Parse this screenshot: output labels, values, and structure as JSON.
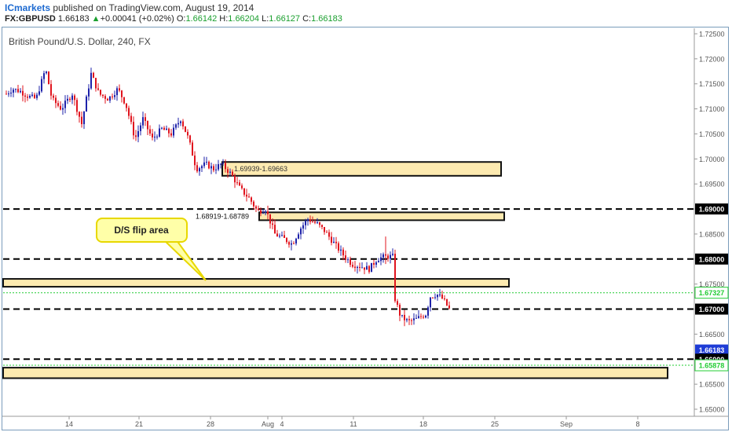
{
  "header": {
    "publisher": "ICmarkets",
    "published_text": " published on TradingView.com, August 19, 2014",
    "symbol": "FX:GBPUSD",
    "last": "1.66183",
    "arrow": "▲",
    "change": "+0.00041 (+0.02%)",
    "o_label": "O:",
    "o_val": "1.66142",
    "h_label": "H:",
    "h_val": "1.66204",
    "l_label": "L:",
    "l_val": "1.66127",
    "c_label": "C:",
    "c_val": "1.66183"
  },
  "chart_title": "British Pound/U.S. Dollar, 240, FX",
  "colors": {
    "up": "#1e22aa",
    "down": "#e0141e",
    "zone_fill": "#fdeab0",
    "zone_stroke": "#111111",
    "green_line": "#22cc33",
    "callout_fill": "#ffffa8",
    "callout_stroke": "#e8d800",
    "current_price": "#1e3cd6"
  },
  "chart_data": {
    "type": "candlestick",
    "title": "British Pound/U.S. Dollar, 240, FX",
    "ylim": [
      1.65,
      1.725
    ],
    "y_ticks": [
      "1.72500",
      "1.72000",
      "1.71500",
      "1.71000",
      "1.70500",
      "1.70000",
      "1.69500",
      "1.69000",
      "1.68500",
      "1.68000",
      "1.67500",
      "1.67000",
      "1.66500",
      "1.66000",
      "1.65500",
      "1.65000"
    ],
    "x_ticks": [
      "14",
      "21",
      "28",
      "Aug",
      "4",
      "11",
      "18",
      "25",
      "Sep",
      "8"
    ],
    "anchors": [
      [
        0,
        1.713
      ],
      [
        8,
        1.714
      ],
      [
        18,
        1.7135
      ],
      [
        28,
        1.7125
      ],
      [
        38,
        1.712
      ],
      [
        50,
        1.718
      ],
      [
        58,
        1.712
      ],
      [
        70,
        1.71
      ],
      [
        84,
        1.713
      ],
      [
        96,
        1.707
      ],
      [
        108,
        1.717
      ],
      [
        118,
        1.713
      ],
      [
        130,
        1.712
      ],
      [
        142,
        1.714
      ],
      [
        152,
        1.711
      ],
      [
        164,
        1.704
      ],
      [
        174,
        1.708
      ],
      [
        186,
        1.704
      ],
      [
        198,
        1.706
      ],
      [
        210,
        1.705
      ],
      [
        222,
        1.708
      ],
      [
        232,
        1.704
      ],
      [
        242,
        1.698
      ],
      [
        254,
        1.699
      ],
      [
        264,
        1.698
      ],
      [
        274,
        1.699
      ],
      [
        286,
        1.697
      ],
      [
        298,
        1.694
      ],
      [
        310,
        1.692
      ],
      [
        320,
        1.6895
      ],
      [
        330,
        1.69
      ],
      [
        342,
        1.685
      ],
      [
        354,
        1.684
      ],
      [
        364,
        1.683
      ],
      [
        374,
        1.686
      ],
      [
        384,
        1.688
      ],
      [
        396,
        1.687
      ],
      [
        406,
        1.6855
      ],
      [
        418,
        1.683
      ],
      [
        428,
        1.681
      ],
      [
        440,
        1.679
      ],
      [
        452,
        1.6785
      ],
      [
        462,
        1.678
      ],
      [
        472,
        1.68
      ],
      [
        482,
        1.6805
      ],
      [
        492,
        1.6805
      ],
      [
        494,
        1.6725
      ],
      [
        502,
        1.6685
      ],
      [
        512,
        1.6675
      ],
      [
        522,
        1.668
      ],
      [
        534,
        1.669
      ],
      [
        540,
        1.6725
      ],
      [
        548,
        1.673
      ],
      [
        556,
        1.672
      ],
      [
        564,
        1.67
      ],
      [
        566,
        1.664
      ],
      [
        572,
        1.6618
      ]
    ],
    "zones": [
      {
        "label": "1.69939-1.69663",
        "top": 1.69939,
        "bottom": 1.69663,
        "x_end_day": "Aug 25"
      },
      {
        "label": "1.68919-1.68789",
        "top": 1.68919,
        "bottom": 1.68789,
        "x_end_day": "Aug 25"
      },
      {
        "label": "",
        "top": 1.676,
        "bottom": 1.6745,
        "x_end_day": "Aug 25"
      },
      {
        "label": "",
        "top": 1.6583,
        "bottom": 1.6562,
        "x_end_day": "Sep 8"
      }
    ],
    "dashed_levels": [
      1.69,
      1.68,
      1.67,
      1.66
    ],
    "green_levels": [
      1.67327,
      1.65878
    ],
    "price_labels": [
      {
        "value": "1.69000",
        "style": "black"
      },
      {
        "value": "1.68000",
        "style": "black"
      },
      {
        "value": "1.67327",
        "style": "green"
      },
      {
        "value": "1.67000",
        "style": "black"
      },
      {
        "value": "1.66183",
        "style": "blue"
      },
      {
        "value": "1.66000",
        "style": "black"
      },
      {
        "value": "1.65878",
        "style": "green"
      }
    ],
    "current_price": 1.66183,
    "annotations": [
      {
        "text": "D/S flip area"
      }
    ]
  }
}
